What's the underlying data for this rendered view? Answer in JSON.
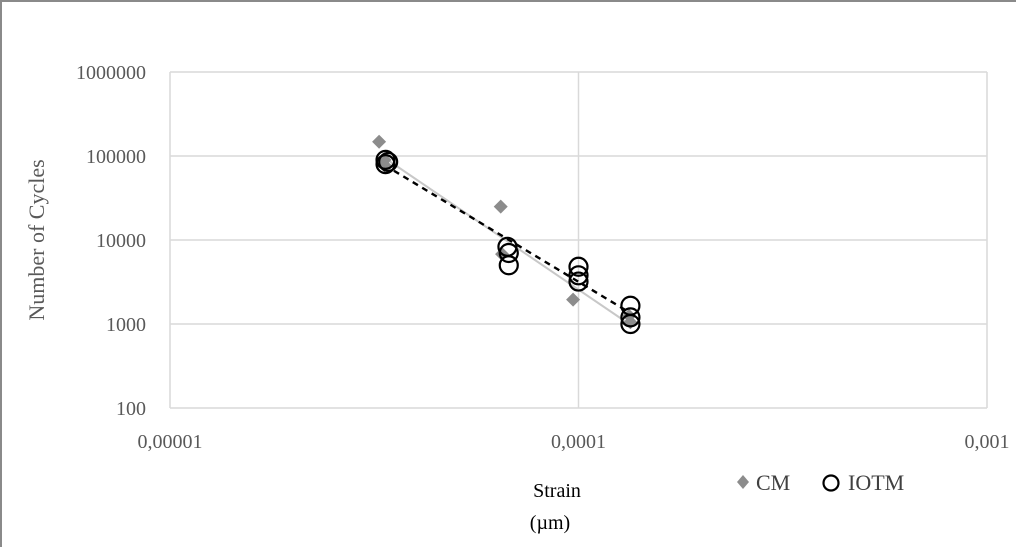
{
  "chart_data": {
    "type": "scatter",
    "title": "",
    "xlabel_line1": "Strain",
    "xlabel_line2": "(µm)",
    "ylabel": "Number of Cycles",
    "x_scale": "log",
    "y_scale": "log",
    "xlim": [
      1e-05,
      0.001
    ],
    "ylim": [
      100,
      1000000
    ],
    "x_ticks": [
      1e-05,
      0.0001,
      0.001
    ],
    "x_tick_labels": [
      "0,00001",
      "0,0001",
      "0,001"
    ],
    "y_ticks": [
      100,
      1000,
      10000,
      100000,
      1000000
    ],
    "y_tick_labels": [
      "100",
      "1000",
      "10000",
      "100000",
      "1000000"
    ],
    "grid": true,
    "legend_position": "bottom-right",
    "series": [
      {
        "name": "CM",
        "marker": "diamond",
        "color": "#8c8c8c",
        "points": [
          [
            3.25e-05,
            148000
          ],
          [
            3.35e-05,
            90000
          ],
          [
            3.35e-05,
            78000
          ],
          [
            6.45e-05,
            25000
          ],
          [
            6.5e-05,
            6800
          ],
          [
            9.7e-05,
            1950
          ],
          [
            0.000133,
            1250
          ],
          [
            0.000134,
            1050
          ]
        ],
        "trend": {
          "style": "solid",
          "color": "#c8c8c8",
          "from": [
            3.3e-05,
            100000
          ],
          "to": [
            0.000133,
            1000
          ]
        }
      },
      {
        "name": "IOTM",
        "marker": "circle",
        "color": "#000000",
        "points": [
          [
            3.37e-05,
            90000
          ],
          [
            3.37e-05,
            80000
          ],
          [
            3.42e-05,
            85000
          ],
          [
            6.7e-05,
            8300
          ],
          [
            6.75e-05,
            7000
          ],
          [
            6.75e-05,
            5000
          ],
          [
            0.0001,
            4800
          ],
          [
            0.0001,
            3800
          ],
          [
            0.0001,
            3200
          ],
          [
            0.000134,
            1650
          ],
          [
            0.000134,
            1200
          ],
          [
            0.000134,
            1000
          ]
        ],
        "trend": {
          "style": "dashed",
          "color": "#000000",
          "from": [
            3.35e-05,
            78000
          ],
          "to": [
            0.000134,
            1350
          ]
        }
      }
    ]
  }
}
